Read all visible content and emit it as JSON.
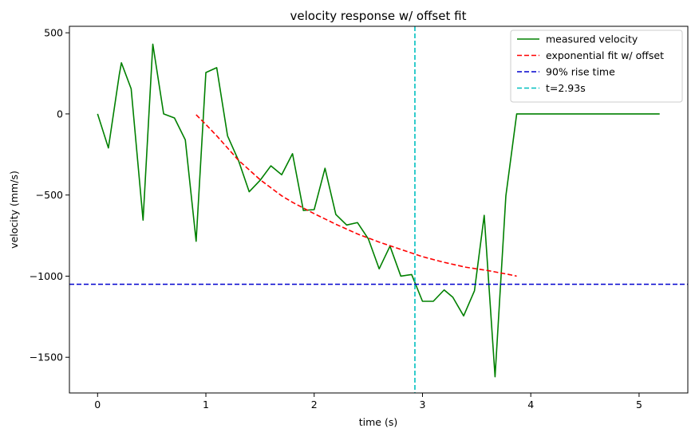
{
  "chart_data": {
    "type": "line",
    "title": "velocity response w/ offset fit",
    "xlabel": "time (s)",
    "ylabel": "velocity (mm/s)",
    "xlim": [
      -0.26,
      5.45
    ],
    "ylim": [
      -1720,
      540
    ],
    "xticks": [
      0,
      1,
      2,
      3,
      4,
      5
    ],
    "xtick_labels": [
      "0",
      "1",
      "2",
      "3",
      "4",
      "5"
    ],
    "yticks": [
      500,
      0,
      -500,
      -1000,
      -1500
    ],
    "ytick_labels": [
      "500",
      "0",
      "−500",
      "−1000",
      "−1500"
    ],
    "grid": false,
    "legend_position": "top-right",
    "series": [
      {
        "name": "measured velocity",
        "style": "solid",
        "color": "#008000",
        "x": [
          0,
          0.1,
          0.2,
          0.22,
          0.31,
          0.42,
          0.51,
          0.61,
          0.71,
          0.81,
          0.91,
          1.0,
          1.1,
          1.2,
          1.3,
          1.4,
          1.5,
          1.6,
          1.7,
          1.8,
          1.9,
          2.0,
          2.1,
          2.2,
          2.3,
          2.4,
          2.5,
          2.6,
          2.7,
          2.8,
          2.9,
          3.0,
          3.1,
          3.2,
          3.28,
          3.38,
          3.48,
          3.57,
          3.67,
          3.77,
          3.87,
          4.0,
          4.5,
          5.0,
          5.19
        ],
        "y": [
          0,
          -210,
          240,
          315,
          155,
          -655,
          430,
          0,
          -25,
          -160,
          -785,
          255,
          285,
          -135,
          -285,
          -480,
          -410,
          -320,
          -375,
          -245,
          -595,
          -590,
          -335,
          -620,
          -685,
          -670,
          -770,
          -955,
          -815,
          -1000,
          -990,
          -1155,
          -1155,
          -1085,
          -1130,
          -1245,
          -1090,
          -625,
          -1620,
          -505,
          0,
          0,
          0,
          0,
          0
        ]
      },
      {
        "name": "exponential fit w/ offset",
        "style": "dashed",
        "color": "#ff0000",
        "x": [
          0.91,
          1.0,
          1.1,
          1.2,
          1.3,
          1.4,
          1.5,
          1.6,
          1.7,
          1.8,
          1.9,
          2.0,
          2.2,
          2.4,
          2.6,
          2.8,
          3.0,
          3.2,
          3.4,
          3.6,
          3.8,
          3.87
        ],
        "y": [
          -5,
          -65,
          -135,
          -210,
          -285,
          -345,
          -405,
          -455,
          -505,
          -545,
          -580,
          -615,
          -680,
          -740,
          -790,
          -835,
          -880,
          -915,
          -945,
          -965,
          -990,
          -1000
        ]
      },
      {
        "name": "90% rise time",
        "style": "dashed",
        "color": "#0000cd",
        "orientation": "horizontal",
        "value": -1050
      },
      {
        "name": "t=2.93s",
        "style": "dashed",
        "color": "#00bfbf",
        "orientation": "vertical",
        "value": 2.93
      }
    ]
  }
}
